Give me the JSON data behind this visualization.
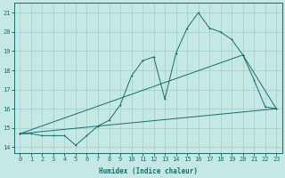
{
  "xlabel": "Humidex (Indice chaleur)",
  "xlim": [
    -0.5,
    23.5
  ],
  "ylim": [
    13.7,
    21.5
  ],
  "yticks": [
    14,
    15,
    16,
    17,
    18,
    19,
    20,
    21
  ],
  "xticks": [
    0,
    1,
    2,
    3,
    4,
    5,
    6,
    7,
    8,
    9,
    10,
    11,
    12,
    13,
    14,
    15,
    16,
    17,
    18,
    19,
    20,
    21,
    22,
    23
  ],
  "bg_color": "#c5e8e5",
  "grid_color": "#9ecece",
  "line_color": "#1a6b6b",
  "line1_x": [
    0,
    1,
    2,
    3,
    4,
    5,
    6,
    7,
    8,
    9,
    10,
    11,
    12,
    13,
    14,
    15,
    16,
    17,
    18,
    19,
    20,
    21,
    22,
    23
  ],
  "line1_y": [
    14.7,
    14.7,
    14.6,
    14.6,
    14.6,
    14.1,
    14.6,
    15.1,
    15.4,
    16.2,
    17.7,
    18.5,
    18.7,
    16.5,
    18.9,
    20.2,
    21.0,
    20.2,
    20.0,
    19.6,
    18.8,
    17.5,
    16.1,
    16.0
  ],
  "line3_x": [
    0,
    20,
    23
  ],
  "line3_y": [
    14.7,
    18.8,
    16.0
  ],
  "line4_x": [
    0,
    23
  ],
  "line4_y": [
    14.7,
    16.0
  ]
}
